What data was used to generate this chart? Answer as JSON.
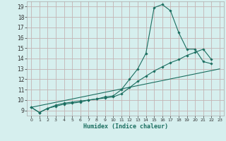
{
  "xlabel": "Humidex (Indice chaleur)",
  "bg_color": "#d6efee",
  "grid_color": "#c4b4b4",
  "line_color": "#1a6e60",
  "xlim": [
    -0.5,
    23.5
  ],
  "ylim": [
    8.5,
    19.5
  ],
  "yticks": [
    9,
    10,
    11,
    12,
    13,
    14,
    15,
    16,
    17,
    18,
    19
  ],
  "xticks": [
    0,
    1,
    2,
    3,
    4,
    5,
    6,
    7,
    8,
    9,
    10,
    11,
    12,
    13,
    14,
    15,
    16,
    17,
    18,
    19,
    20,
    21,
    22,
    23
  ],
  "curve1_x": [
    0,
    1,
    2,
    3,
    4,
    5,
    6,
    7,
    8,
    9,
    10,
    11,
    12,
    13,
    14,
    15,
    16,
    17,
    18,
    19,
    20,
    21,
    22
  ],
  "curve1_y": [
    9.3,
    8.8,
    9.2,
    9.4,
    9.6,
    9.7,
    9.8,
    10.0,
    10.1,
    10.3,
    10.4,
    11.0,
    12.0,
    13.0,
    14.5,
    18.9,
    19.2,
    18.6,
    16.5,
    14.9,
    14.9,
    13.7,
    13.5
  ],
  "curve2_x": [
    0,
    1,
    2,
    3,
    4,
    5,
    6,
    7,
    8,
    9,
    10,
    11,
    12,
    13,
    14,
    15,
    16,
    17,
    18,
    19,
    20,
    21,
    22
  ],
  "curve2_y": [
    9.3,
    8.8,
    9.2,
    9.5,
    9.7,
    9.8,
    9.9,
    10.0,
    10.1,
    10.2,
    10.3,
    10.6,
    11.2,
    11.8,
    12.3,
    12.8,
    13.2,
    13.6,
    13.9,
    14.3,
    14.6,
    14.9,
    13.9
  ],
  "curve3_x": [
    0,
    23
  ],
  "curve3_y": [
    9.3,
    13.0
  ]
}
